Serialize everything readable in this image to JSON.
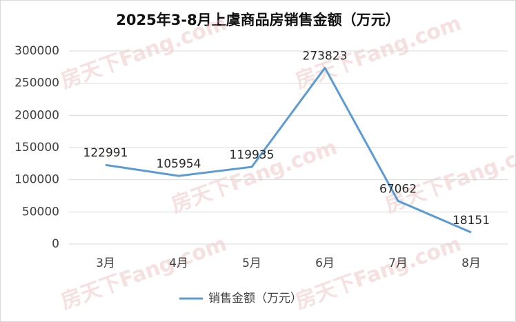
{
  "chart_data": {
    "type": "line",
    "title": "2025年3-8月上虞商品房销售金额（万元）",
    "watermark": "房天下Fang.com",
    "categories": [
      "3月",
      "4月",
      "5月",
      "6月",
      "7月",
      "8月"
    ],
    "series": [
      {
        "name": "销售金额（万元）",
        "color": "#5b9bd5",
        "values": [
          122991,
          105954,
          119935,
          273823,
          67062,
          18151
        ]
      }
    ],
    "ylim": [
      0,
      300000
    ],
    "yticks": [
      0,
      50000,
      100000,
      150000,
      200000,
      250000,
      300000
    ],
    "grid": true,
    "legend": "bottom"
  }
}
